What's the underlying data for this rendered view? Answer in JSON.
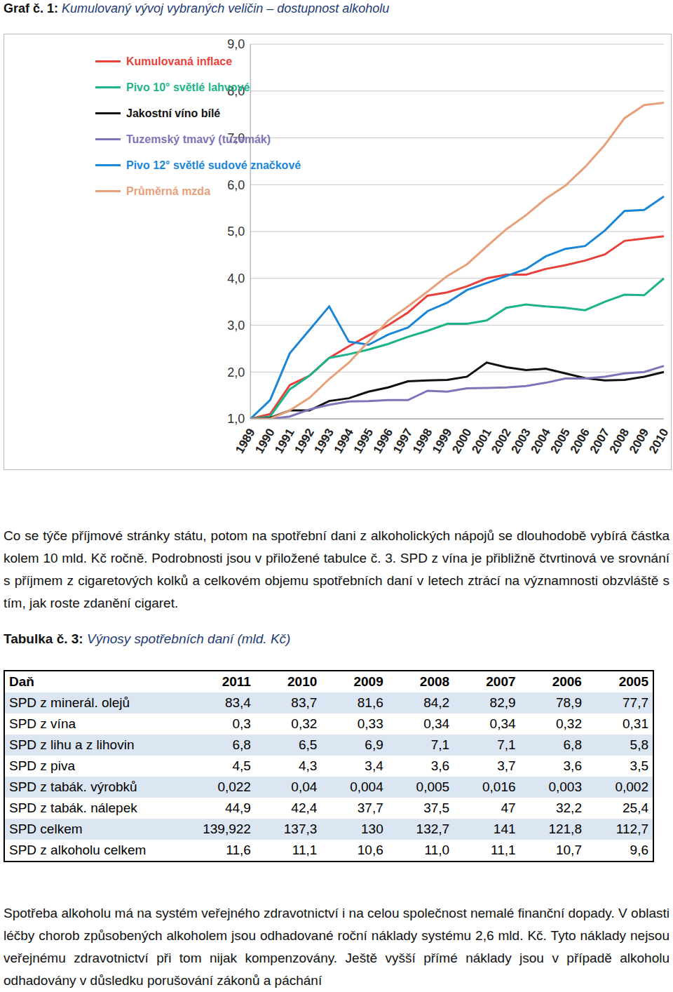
{
  "caption": {
    "label": "Graf č. 1:",
    "text": "Kumulovaný vývoj vybraných veličin – dostupnost alkoholu"
  },
  "chart_data": {
    "type": "line",
    "categories": [
      "1989",
      "1990",
      "1991",
      "1992",
      "1993",
      "1994",
      "1995",
      "1996",
      "1997",
      "1998",
      "1999",
      "2000",
      "2001",
      "2002",
      "2003",
      "2004",
      "2005",
      "2006",
      "2007",
      "2008",
      "2009",
      "2010"
    ],
    "ylim": [
      1,
      9
    ],
    "yticks": [
      {
        "value": 1,
        "label": "1,0"
      },
      {
        "value": 2,
        "label": "2,0"
      },
      {
        "value": 3,
        "label": "3,0"
      },
      {
        "value": 4,
        "label": "4,0"
      },
      {
        "value": 5,
        "label": "5,0"
      },
      {
        "value": 6,
        "label": "6,0"
      },
      {
        "value": 7,
        "label": "7,0"
      },
      {
        "value": 8,
        "label": "8,0"
      },
      {
        "value": 9,
        "label": "9,0"
      }
    ],
    "grid": true,
    "legend": "top-left",
    "series": [
      {
        "name": "Kumulovaná inflace",
        "color": "#e8413c",
        "values": [
          1.0,
          1.1,
          1.72,
          1.92,
          2.3,
          2.55,
          2.78,
          3.0,
          3.27,
          3.63,
          3.7,
          3.83,
          4.0,
          4.08,
          4.08,
          4.2,
          4.28,
          4.38,
          4.51,
          4.8,
          4.85,
          4.9
        ]
      },
      {
        "name": "Pivo 10° světlé lahvové",
        "color": "#1db38a",
        "values": [
          1.0,
          1.05,
          1.63,
          1.92,
          2.3,
          2.38,
          2.48,
          2.6,
          2.75,
          2.88,
          3.03,
          3.03,
          3.1,
          3.37,
          3.44,
          3.4,
          3.37,
          3.32,
          3.5,
          3.65,
          3.64,
          4.0
        ]
      },
      {
        "name": "Jakostní víno bílé",
        "color": "#111111",
        "values": [
          1.0,
          1.02,
          1.18,
          1.18,
          1.38,
          1.44,
          1.58,
          1.67,
          1.8,
          1.82,
          1.83,
          1.9,
          2.2,
          2.1,
          2.04,
          2.07,
          1.97,
          1.87,
          1.82,
          1.83,
          1.9,
          2.0
        ]
      },
      {
        "name": "Tuzemský tmavý (tuzemák)",
        "color": "#8073b8",
        "values": [
          1.0,
          1.0,
          1.05,
          1.2,
          1.3,
          1.37,
          1.38,
          1.4,
          1.4,
          1.6,
          1.58,
          1.65,
          1.66,
          1.67,
          1.7,
          1.77,
          1.86,
          1.86,
          1.9,
          1.97,
          2.0,
          2.13
        ]
      },
      {
        "name": "Pivo 12° světlé sudové značkové",
        "color": "#1a86d8",
        "values": [
          1.0,
          1.4,
          2.4,
          2.9,
          3.4,
          2.65,
          2.58,
          2.8,
          2.95,
          3.3,
          3.48,
          3.75,
          3.9,
          4.05,
          4.2,
          4.47,
          4.63,
          4.69,
          5.02,
          5.44,
          5.46,
          5.75
        ]
      },
      {
        "name": "Průměrná mzda",
        "color": "#e8a07a",
        "values": [
          1.0,
          1.0,
          1.18,
          1.45,
          1.85,
          2.2,
          2.65,
          3.1,
          3.4,
          3.72,
          4.05,
          4.3,
          4.68,
          5.05,
          5.35,
          5.7,
          5.98,
          6.38,
          6.85,
          7.42,
          7.7,
          7.75
        ]
      }
    ]
  },
  "paragraph1": "Co se týče příjmové stránky státu, potom na spotřební dani z alkoholických nápojů se dlouhodobě vybírá částka kolem 10 mld. Kč ročně. Podrobnosti jsou v přiložené tabulce č. 3. SPD z vína je přibližně čtvrtinová ve srovnání s příjmem z cigaretových kolků a celkovém objemu spotřebních daní v letech ztrácí na významnosti obzvláště s tím, jak roste zdanění cigaret.",
  "table": {
    "title": {
      "label": "Tabulka č. 3:",
      "text": "Výnosy spotřebních daní (mld. Kč)"
    },
    "header": [
      "Daň",
      "2011",
      "2010",
      "2009",
      "2008",
      "2007",
      "2006",
      "2005"
    ],
    "rows": [
      [
        "SPD z minerál. olejů",
        "83,4",
        "83,7",
        "81,6",
        "84,2",
        "82,9",
        "78,9",
        "77,7"
      ],
      [
        "SPD z vína",
        "0,3",
        "0,32",
        "0,33",
        "0,34",
        "0,34",
        "0,32",
        "0,31"
      ],
      [
        "SPD z lihu a z lihovin",
        "6,8",
        "6,5",
        "6,9",
        "7,1",
        "7,1",
        "6,8",
        "5,8"
      ],
      [
        "SPD z piva",
        "4,5",
        "4,3",
        "3,4",
        "3,6",
        "3,7",
        "3,6",
        "3,5"
      ],
      [
        "SPD z tabák. výrobků",
        "0,022",
        "0,04",
        "0,004",
        "0,005",
        "0,016",
        "0,003",
        "0,002"
      ],
      [
        "SPD z tabák. nálepek",
        "44,9",
        "42,4",
        "37,7",
        "37,5",
        "47",
        "32,2",
        "25,4"
      ],
      [
        "SPD celkem",
        "139,922",
        "137,3",
        "130",
        "132,7",
        "141",
        "121,8",
        "112,7"
      ],
      [
        "SPD z alkoholu celkem",
        "11,6",
        "11,1",
        "10,6",
        "11,0",
        "11,1",
        "10,7",
        "9,6"
      ]
    ]
  },
  "paragraph2": "Spotřeba alkoholu má na systém veřejného zdravotnictví i na celou společnost nemalé finanční dopady. V oblasti léčby chorob způsobených alkoholem jsou odhadované roční náklady systému 2,6 mld. Kč. Tyto náklady nejsou veřejnému zdravotnictví při tom nijak kompenzovány. Ještě vyšší přímé náklady jsou v případě alkoholu odhadovány v důsledku porušování zákonů a páchání"
}
